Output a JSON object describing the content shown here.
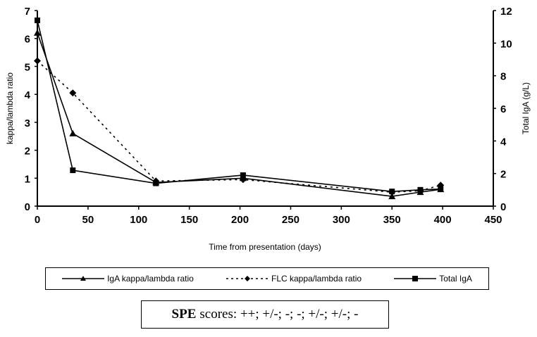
{
  "chart_data": {
    "type": "line",
    "title": "",
    "xlabel": "Time from presentation (days)",
    "ylabel": "kappa/lambda ratio",
    "y2label": "Total IgA (g/L)",
    "xlim": [
      0,
      450
    ],
    "ylim": [
      0,
      7
    ],
    "y2lim": [
      0,
      12
    ],
    "xticks": [
      "0",
      "50",
      "100",
      "150",
      "200",
      "250",
      "300",
      "350",
      "400",
      "450"
    ],
    "yticks": [
      "0",
      "1",
      "2",
      "3",
      "4",
      "5",
      "6",
      "7"
    ],
    "y2ticks": [
      "0",
      "2",
      "4",
      "6",
      "8",
      "10",
      "12"
    ],
    "grid": false,
    "series": [
      {
        "name": "IgA kappa/lambda ratio",
        "axis": "left",
        "marker": "triangle",
        "dash": "solid",
        "x": [
          0,
          35,
          117,
          203,
          350,
          378,
          398
        ],
        "y": [
          6.2,
          2.6,
          0.85,
          1.0,
          0.35,
          0.5,
          0.6
        ]
      },
      {
        "name": "FLC kappa/lambda ratio",
        "axis": "left",
        "marker": "diamond",
        "dash": "dotted",
        "x": [
          0,
          35,
          117,
          203,
          350,
          378,
          398
        ],
        "y": [
          5.2,
          4.05,
          0.9,
          0.95,
          0.5,
          0.55,
          0.75
        ]
      },
      {
        "name": "Total IgA",
        "axis": "right",
        "marker": "square",
        "dash": "solid",
        "x": [
          0,
          35,
          117,
          203,
          350,
          378,
          398
        ],
        "y": [
          11.4,
          2.2,
          1.4,
          1.9,
          0.9,
          1.0,
          1.05
        ]
      }
    ],
    "legend_position": "bottom"
  },
  "spe": {
    "label": "SPE",
    "text": "scores: ++; +/-; -; -; +/-; +/-; -"
  }
}
